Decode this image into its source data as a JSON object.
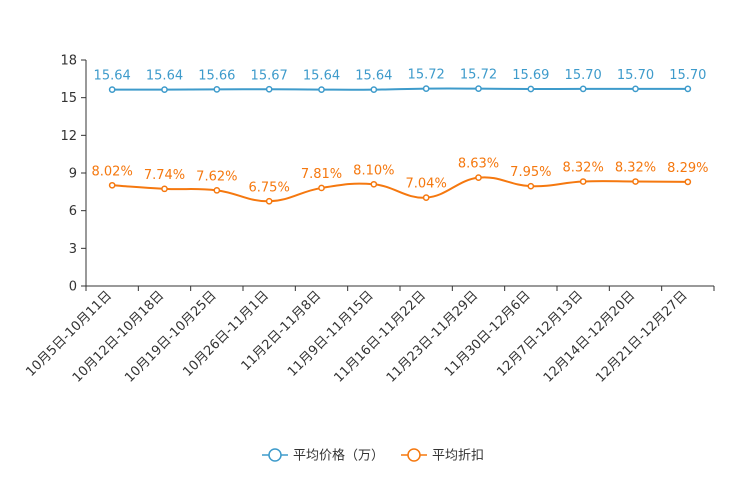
{
  "chart_data": {
    "type": "line",
    "title": "",
    "xlabel": "",
    "ylabel": "",
    "ylim": [
      0,
      18
    ],
    "yticks": [
      0,
      3,
      6,
      9,
      12,
      15,
      18
    ],
    "grid": false,
    "legend_position": "bottom-center",
    "categories": [
      "10月5日-10月11日",
      "10月12日-10月18日",
      "10月19日-10月25日",
      "10月26日-11月1日",
      "11月2日-11月8日",
      "11月9日-11月15日",
      "11月16日-11月22日",
      "11月23日-11月29日",
      "11月30日-12月6日",
      "12月7日-12月13日",
      "12月14日-12月20日",
      "12月21日-12月27日"
    ],
    "series": [
      {
        "name": "平均价格（万）",
        "color": "#3e9bcb",
        "values": [
          15.64,
          15.64,
          15.66,
          15.67,
          15.64,
          15.64,
          15.72,
          15.72,
          15.69,
          15.7,
          15.7,
          15.7
        ],
        "labels": [
          "15.64",
          "15.64",
          "15.66",
          "15.67",
          "15.64",
          "15.64",
          "15.72",
          "15.72",
          "15.69",
          "15.70",
          "15.70",
          "15.70"
        ]
      },
      {
        "name": "平均折扣",
        "color": "#f5780f",
        "values": [
          8.02,
          7.74,
          7.62,
          6.75,
          7.81,
          8.1,
          7.04,
          8.63,
          7.95,
          8.32,
          8.32,
          8.29
        ],
        "labels": [
          "8.02%",
          "7.74%",
          "7.62%",
          "6.75%",
          "7.81%",
          "8.10%",
          "7.04%",
          "8.63%",
          "7.95%",
          "8.32%",
          "8.32%",
          "8.29%"
        ]
      }
    ]
  }
}
